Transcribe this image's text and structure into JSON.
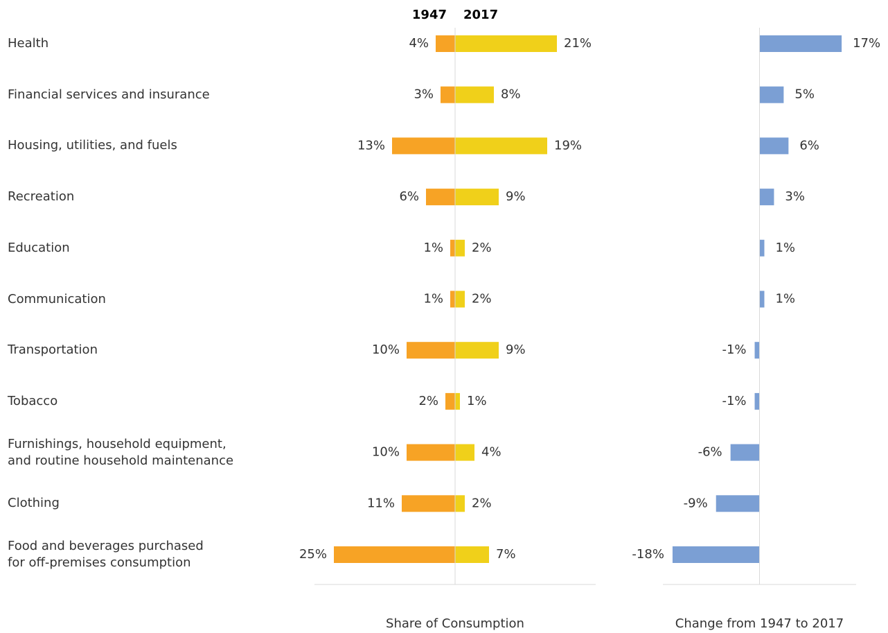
{
  "chart_data": [
    {
      "type": "butterfly",
      "categories": [
        "Health",
        "Financial services and insurance",
        "Housing, utilities, and fuels",
        "Recreation",
        "Education",
        "Communication",
        "Transportation",
        "Tobacco",
        "Furnishings, household equipment,\nand routine household maintenance",
        "Clothing",
        "Food and beverages purchased\nfor off-premises consumption"
      ],
      "series": [
        {
          "name": "1947",
          "color": "#f7a325",
          "values": [
            4,
            3,
            13,
            6,
            1,
            1,
            10,
            2,
            10,
            11,
            25
          ],
          "value_labels": [
            "4%",
            "3%",
            "13%",
            "6%",
            "1%",
            "1%",
            "10%",
            "2%",
            "10%",
            "11%",
            "25%"
          ]
        },
        {
          "name": "2017",
          "color": "#f0d01a",
          "values": [
            21,
            8,
            19,
            9,
            2,
            2,
            9,
            1,
            4,
            2,
            7
          ],
          "value_labels": [
            "21%",
            "8%",
            "19%",
            "9%",
            "2%",
            "2%",
            "9%",
            "1%",
            "4%",
            "2%",
            "7%"
          ]
        }
      ],
      "xlim": [
        0,
        29
      ],
      "xlabel": "Share of Consumption"
    },
    {
      "type": "bar",
      "color": "#7b9fd4",
      "values": [
        17,
        5,
        6,
        3,
        1,
        1,
        -1,
        -1,
        -6,
        -9,
        -18
      ],
      "value_labels": [
        "17%",
        "5%",
        "6%",
        "3%",
        "1%",
        "1%",
        "-1%",
        "-1%",
        "-6%",
        "-9%",
        "-18%"
      ],
      "xlim": [
        -20,
        20
      ],
      "xlabel": "Change from 1947 to 2017"
    }
  ]
}
